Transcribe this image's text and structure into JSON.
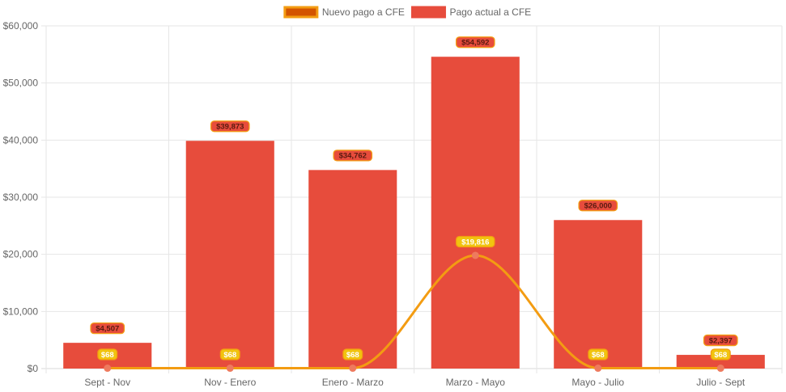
{
  "chart_data": {
    "type": "bar",
    "categories": [
      "Sept - Nov",
      "Nov - Enero",
      "Enero - Marzo",
      "Marzo - Mayo",
      "Mayo - Julio",
      "Julio - Sept"
    ],
    "series": [
      {
        "name": "Nuevo pago a CFE",
        "type": "line",
        "values": [
          68,
          68,
          68,
          19816,
          68,
          68
        ],
        "labels": [
          "$68",
          "$68",
          "$68",
          "$19,816",
          "$68",
          "$68"
        ],
        "color": "#F39C12",
        "point_color": "#EE7A5E",
        "label_bg": "#F1C40F"
      },
      {
        "name": "Pago actual a CFE",
        "type": "bar",
        "values": [
          4507,
          39873,
          34762,
          54592,
          26000,
          2397
        ],
        "labels": [
          "$4,507",
          "$39,873",
          "$34,762",
          "$54,592",
          "$26,000",
          "$2,397"
        ],
        "color": "#E74C3C",
        "label_border": "#F39C12"
      }
    ],
    "legend": [
      {
        "label": "Nuevo pago a CFE",
        "fill": "#D35400",
        "border": "#F39C12"
      },
      {
        "label": "Pago actual a CFE",
        "fill": "#E74C3C",
        "border": "#E74C3C"
      }
    ],
    "y_ticks": [
      "$0",
      "$10,000",
      "$20,000",
      "$30,000",
      "$40,000",
      "$50,000",
      "$60,000"
    ],
    "ylim": [
      0,
      60000
    ],
    "grid": true,
    "legend_position": "top"
  }
}
